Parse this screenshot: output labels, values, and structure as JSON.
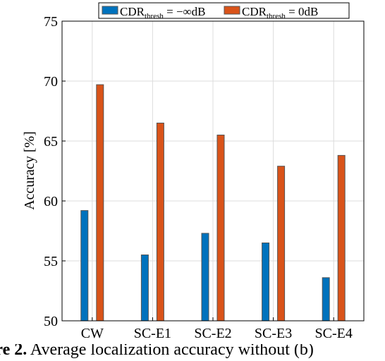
{
  "chart_data": {
    "type": "bar",
    "categories": [
      "CW",
      "SC-E1",
      "SC-E2",
      "SC-E3",
      "SC-E4"
    ],
    "series": [
      {
        "name_prefix": "CDR",
        "name_sub": "thresh",
        "name_suffix": " = −∞dB",
        "color": "#0072BD",
        "values": [
          59.2,
          55.5,
          57.3,
          56.5,
          53.6
        ]
      },
      {
        "name_prefix": "CDR",
        "name_sub": "thresh",
        "name_suffix": " = 0dB",
        "color": "#D95319",
        "values": [
          69.7,
          66.5,
          65.5,
          62.9,
          63.8
        ]
      }
    ],
    "ylabel": "Accuracy [%]",
    "xlabel": "",
    "ylim": [
      50,
      75
    ],
    "yticks": [
      "50",
      "55",
      "60",
      "65",
      "70",
      "75"
    ],
    "grid": true,
    "legend": "top, outside"
  },
  "caption": {
    "label": "ure 2.",
    "text": " Average localization accuracy without (b)"
  }
}
